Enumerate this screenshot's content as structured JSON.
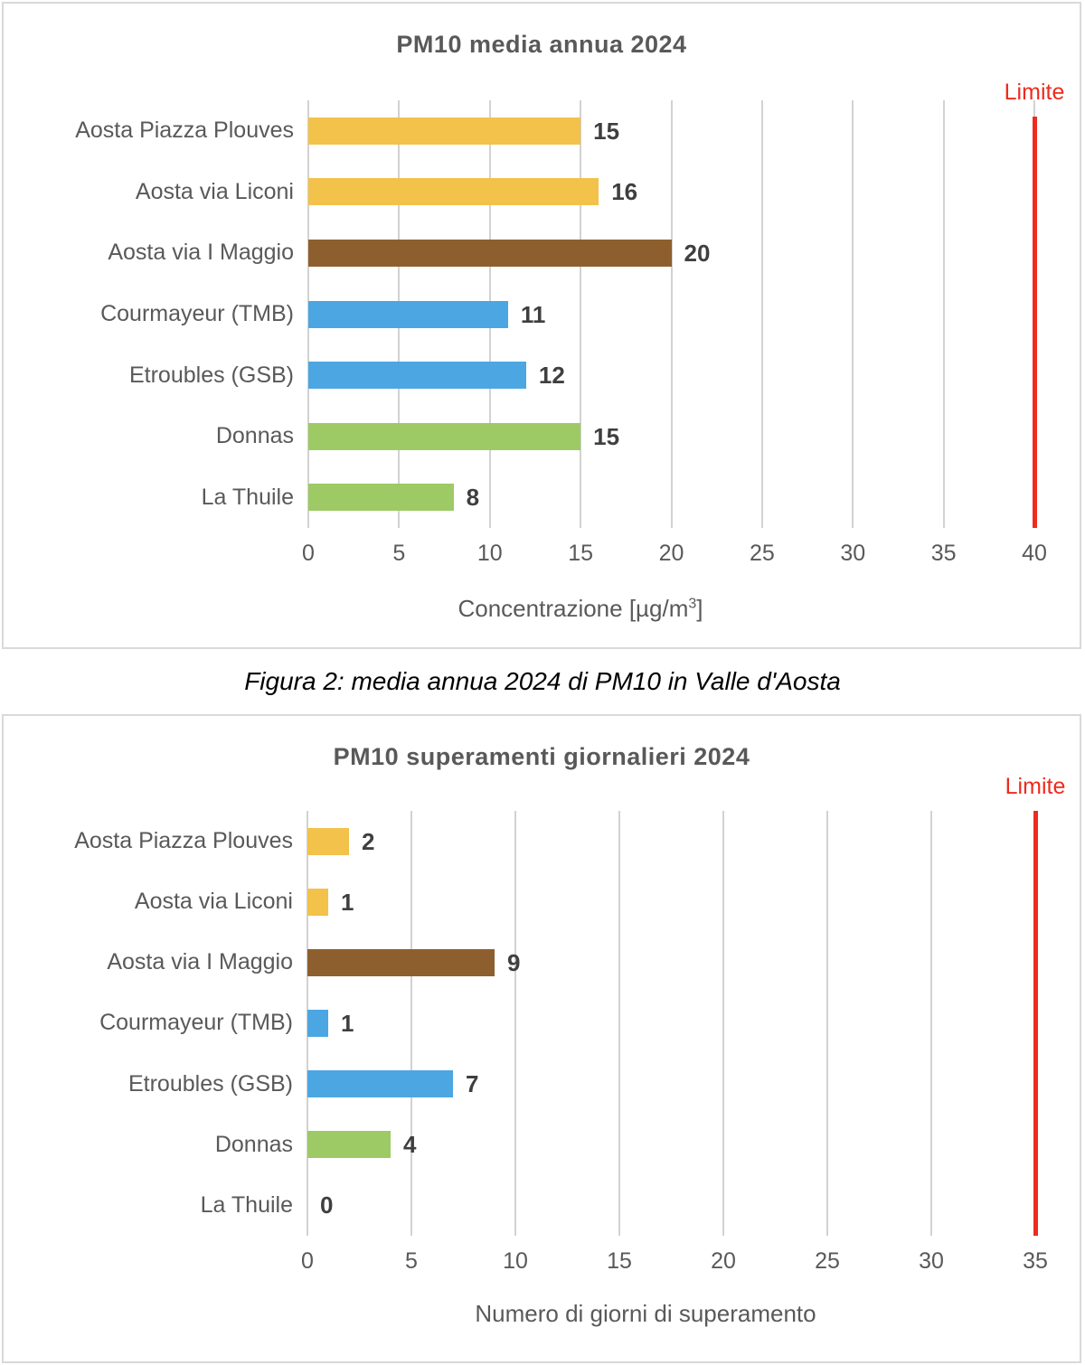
{
  "caption": {
    "text": "Figura 2: media annua 2024 di PM10 in Valle d'Aosta"
  },
  "chart_data": [
    {
      "type": "bar",
      "orientation": "horizontal",
      "title": "PM10 media annua 2024",
      "categories": [
        "Aosta Piazza Plouves",
        "Aosta via Liconi",
        "Aosta via I Maggio",
        "Courmayeur (TMB)",
        "Etroubles (GSB)",
        "Donnas",
        "La Thuile"
      ],
      "values": [
        15,
        16,
        20,
        11,
        12,
        15,
        8
      ],
      "bar_colors": [
        "#f2c24a",
        "#f2c24a",
        "#8e5f2e",
        "#4ca6e2",
        "#4ca6e2",
        "#9dca64",
        "#9dca64"
      ],
      "xlim": [
        0,
        40
      ],
      "xticks": [
        0,
        5,
        10,
        15,
        20,
        25,
        30,
        35,
        40
      ],
      "xlabel_pre": "Concentrazione [µg/m",
      "xlabel_sup": "3",
      "xlabel_post": "]",
      "grid": true,
      "legend": "none",
      "limit": {
        "label": "Limite",
        "value": 40,
        "color": "#ee2b1e"
      }
    },
    {
      "type": "bar",
      "orientation": "horizontal",
      "title": "PM10 superamenti giornalieri 2024",
      "categories": [
        "Aosta Piazza Plouves",
        "Aosta via Liconi",
        "Aosta via I Maggio",
        "Courmayeur (TMB)",
        "Etroubles (GSB)",
        "Donnas",
        "La Thuile"
      ],
      "values": [
        2,
        1,
        9,
        1,
        7,
        4,
        0
      ],
      "bar_colors": [
        "#f2c24a",
        "#f2c24a",
        "#8e5f2e",
        "#4ca6e2",
        "#4ca6e2",
        "#9dca64",
        "#9dca64"
      ],
      "xlim": [
        0,
        35
      ],
      "xticks": [
        0,
        5,
        10,
        15,
        20,
        25,
        30,
        35
      ],
      "xlabel_pre": "Numero di giorni di superamento",
      "xlabel_sup": "",
      "xlabel_post": "",
      "grid": true,
      "legend": "none",
      "limit": {
        "label": "Limite",
        "value": 35,
        "color": "#ee2b1e"
      }
    }
  ]
}
